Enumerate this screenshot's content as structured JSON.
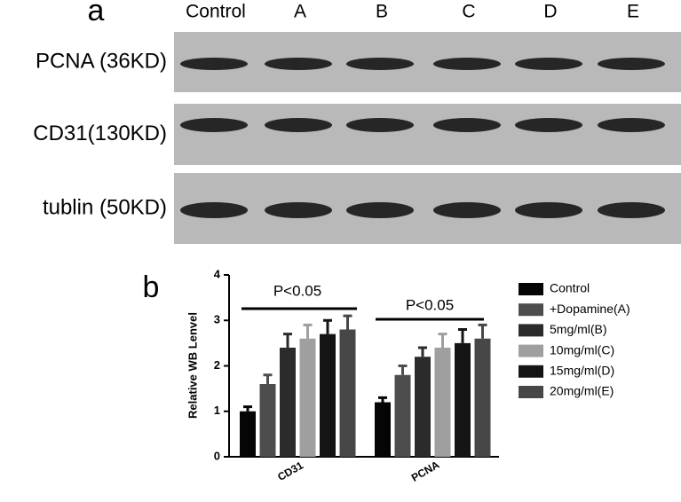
{
  "panel_a": {
    "label": "a",
    "lanes": [
      "Control",
      "A",
      "B",
      "C",
      "D",
      "E"
    ],
    "rows": [
      "PCNA (36KD)",
      "CD31(130KD)",
      "tublin (50KD)"
    ]
  },
  "chart_data": {
    "type": "bar",
    "panel_label": "b",
    "y_label": "Relative WB Lenvel",
    "categories": [
      "CD31",
      "PCNA"
    ],
    "series": [
      {
        "name": "Control",
        "color": "#050505",
        "values": [
          1.0,
          1.2
        ],
        "errors": [
          0.1,
          0.1
        ]
      },
      {
        "name": "+Dopamine(A)",
        "color": "#4d4d4d",
        "values": [
          1.6,
          1.8
        ],
        "errors": [
          0.2,
          0.2
        ]
      },
      {
        "name": "5mg/ml(B)",
        "color": "#2b2b2b",
        "values": [
          2.4,
          2.2
        ],
        "errors": [
          0.3,
          0.2
        ]
      },
      {
        "name": "10mg/ml(C)",
        "color": "#9f9f9f",
        "values": [
          2.6,
          2.4
        ],
        "errors": [
          0.3,
          0.3
        ]
      },
      {
        "name": "15mg/ml(D)",
        "color": "#141414",
        "values": [
          2.7,
          2.5
        ],
        "errors": [
          0.3,
          0.3
        ]
      },
      {
        "name": "20mg/ml(E)",
        "color": "#474747",
        "values": [
          2.8,
          2.6
        ],
        "errors": [
          0.3,
          0.3
        ]
      }
    ],
    "annotations": [
      "P<0.05",
      "P<0.05"
    ],
    "ylim": [
      0,
      4
    ],
    "yticks": [
      0,
      1,
      2,
      3,
      4
    ]
  }
}
